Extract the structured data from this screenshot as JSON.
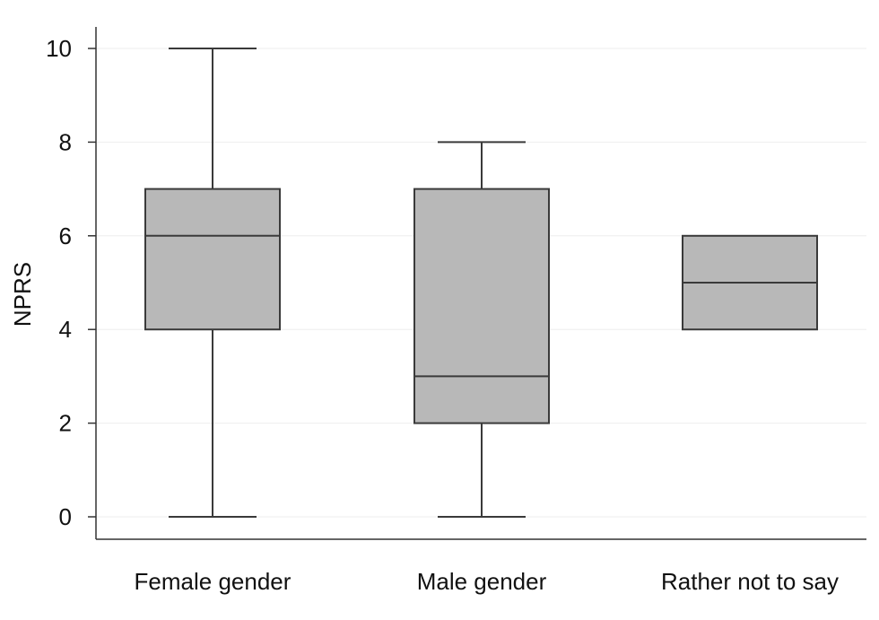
{
  "chart_data": {
    "type": "boxplot",
    "title": "",
    "xlabel": "",
    "ylabel": "NPRS",
    "ylim": [
      0,
      10
    ],
    "yticks": [
      0,
      2,
      4,
      6,
      8,
      10
    ],
    "grid": true,
    "box_color": "#b8b8b8",
    "line_color": "#3a3a3a",
    "categories": [
      "Female gender",
      "Male gender",
      "Rather not to say"
    ],
    "boxes": [
      {
        "category": "Female gender",
        "min": 0,
        "q1": 4,
        "median": 6,
        "q3": 7,
        "max": 10
      },
      {
        "category": "Male gender",
        "min": 0,
        "q1": 2,
        "median": 3,
        "q3": 7,
        "max": 8
      },
      {
        "category": "Rather not to say",
        "min": 4,
        "q1": 4,
        "median": 5,
        "q3": 6,
        "max": 6
      }
    ]
  }
}
